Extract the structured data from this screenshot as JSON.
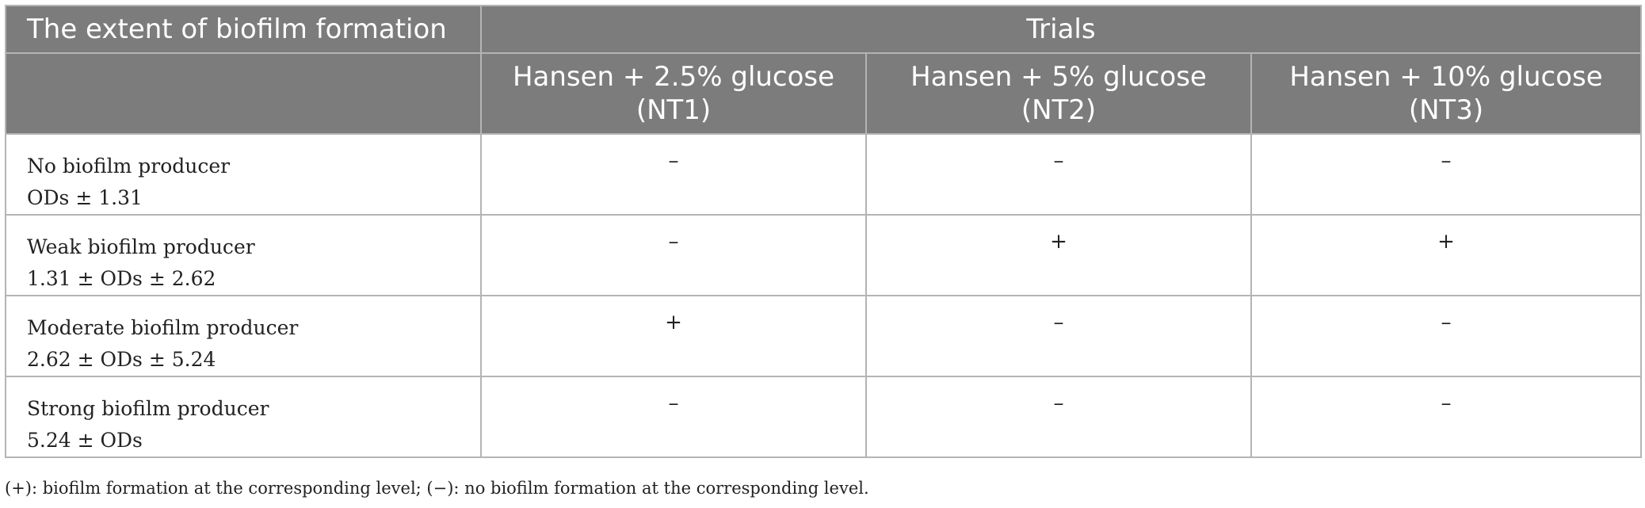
{
  "table": {
    "header": {
      "extent_label": "The extent of biofilm formation",
      "trials_label": "Trials",
      "columns": [
        {
          "line1": "Hansen + 2.5% glucose",
          "line2": "(NT1)"
        },
        {
          "line1": "Hansen + 5% glucose",
          "line2": "(NT2)"
        },
        {
          "line1": "Hansen + 10% glucose",
          "line2": "(NT3)"
        }
      ]
    },
    "rows": [
      {
        "name": "No biofilm producer",
        "criterion": "ODs ± 1.31",
        "values": [
          "–",
          "–",
          "–"
        ]
      },
      {
        "name": "Weak biofilm producer",
        "criterion": "1.31 ± ODs ± 2.62",
        "values": [
          "–",
          "+",
          "+"
        ]
      },
      {
        "name": "Moderate biofilm producer",
        "criterion": "2.62 ± ODs ± 5.24",
        "values": [
          "+",
          "–",
          "–"
        ]
      },
      {
        "name": "Strong biofilm producer",
        "criterion": "5.24 ± ODs",
        "values": [
          "–",
          "–",
          "–"
        ]
      }
    ]
  },
  "footnote": "(+): biofilm formation at the corresponding level; (−): no biofilm formation at the corresponding level.",
  "colors": {
    "header_bg": "#7c7c7c",
    "header_text": "#ffffff",
    "border": "#b4b4b4",
    "body_text": "#222222"
  }
}
